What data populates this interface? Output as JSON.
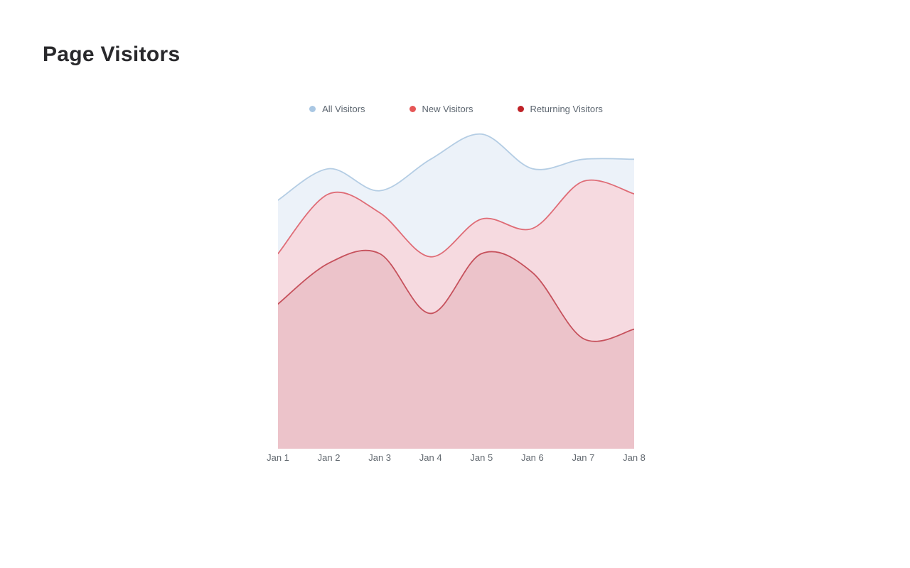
{
  "title": "Page Visitors",
  "background": "#ffffff",
  "title_color": "#29292c",
  "axis_label_color": "#61686f",
  "legend_label_color": "#5d6670",
  "chart_data": {
    "type": "area",
    "title": "Page Visitors",
    "xlabel": "",
    "ylabel": "",
    "x": [
      "Jan 1",
      "Jan 2",
      "Jan 3",
      "Jan 4",
      "Jan 5",
      "Jan 6",
      "Jan 7",
      "Jan 8"
    ],
    "series": [
      {
        "name": "All Visitors",
        "color": "#a9c7e3",
        "stroke": "#b4cde4",
        "fill": "#ecf2f9",
        "values": [
          79,
          89,
          82,
          92,
          100,
          89,
          92,
          92
        ]
      },
      {
        "name": "New Visitors",
        "color": "#e65656",
        "stroke": "#df6c76",
        "fill": "#f6dae0",
        "values": [
          62,
          81,
          75,
          61,
          73,
          70,
          85,
          81
        ]
      },
      {
        "name": "Returning Visitors",
        "color": "#bf2227",
        "stroke": "#c6515c",
        "fill": "#ecc3ca",
        "values": [
          46,
          59,
          62,
          43,
          62,
          56,
          35,
          38
        ]
      }
    ],
    "ylim": [
      0,
      102
    ],
    "grid": false,
    "y_axis_visible": false,
    "legend_position": "top",
    "curve": "smooth"
  }
}
